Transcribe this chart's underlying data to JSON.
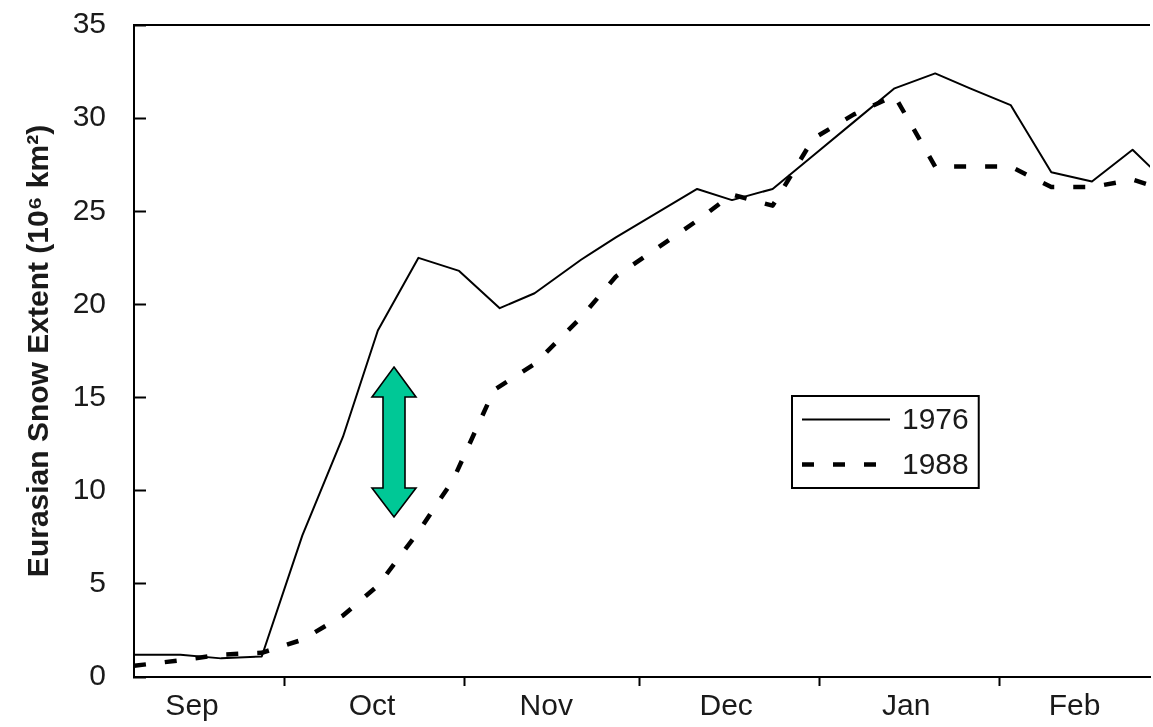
{
  "chart_data": {
    "type": "line",
    "ylabel": "Eurasian Snow Extent (10⁶ km²)",
    "xlim": [
      "1976-09-05",
      "1977-02-27"
    ],
    "xticks": [
      {
        "value": "1976-09-15",
        "label": "Sep"
      },
      {
        "value": "1976-10-01",
        "label": null
      },
      {
        "value": "1976-10-16",
        "label": "Oct"
      },
      {
        "value": "1976-11-01",
        "label": null
      },
      {
        "value": "1976-11-15",
        "label": "Nov"
      },
      {
        "value": "1976-12-01",
        "label": null
      },
      {
        "value": "1976-12-16",
        "label": "Dec"
      },
      {
        "value": "1977-01-01",
        "label": null
      },
      {
        "value": "1977-01-16",
        "label": "Jan"
      },
      {
        "value": "1977-02-01",
        "label": null
      },
      {
        "value": "1977-02-14",
        "label": "Feb"
      }
    ],
    "ylim": [
      0,
      35
    ],
    "yticks": [
      0,
      5,
      10,
      15,
      20,
      25,
      30,
      35
    ],
    "legend": "right",
    "marker": "none",
    "series": [
      {
        "name": "1976",
        "color": "#000000",
        "line_style": "solid",
        "x": [
          "1976-09-05",
          "1976-09-13",
          "1976-09-20",
          "1976-09-27",
          "1976-10-04",
          "1976-10-11",
          "1976-10-17",
          "1976-10-24",
          "1976-10-31",
          "1976-11-07",
          "1976-11-13",
          "1976-11-21",
          "1976-11-27",
          "1976-12-04",
          "1976-12-11",
          "1976-12-17",
          "1976-12-24",
          "1976-12-31",
          "1977-01-07",
          "1977-01-14",
          "1977-01-21",
          "1977-01-27",
          "1977-02-03",
          "1977-02-10",
          "1977-02-17",
          "1977-02-24",
          "1977-02-27"
        ],
        "values": [
          1.2,
          1.2,
          1.0,
          1.1,
          7.6,
          12.9,
          18.6,
          22.5,
          21.8,
          19.8,
          20.6,
          22.4,
          23.6,
          24.9,
          26.2,
          25.6,
          26.2,
          28.0,
          29.8,
          31.6,
          32.4,
          31.6,
          30.7,
          27.1,
          26.6,
          28.3,
          27.4
        ]
      },
      {
        "name": "1988",
        "color": "#000000",
        "line_style": "dashed",
        "x": [
          "1976-09-05",
          "1976-09-13",
          "1976-09-20",
          "1976-09-27",
          "1976-10-04",
          "1976-10-11",
          "1976-10-17",
          "1976-10-24",
          "1976-10-30",
          "1976-11-06",
          "1976-11-13",
          "1976-11-21",
          "1976-11-27",
          "1976-12-04",
          "1976-12-11",
          "1976-12-17",
          "1976-12-24",
          "1976-12-31",
          "1977-01-07",
          "1977-01-14",
          "1977-01-21",
          "1977-01-27",
          "1977-02-03",
          "1977-02-10",
          "1977-02-17",
          "1977-02-24",
          "1977-02-27"
        ],
        "values": [
          0.6,
          0.9,
          1.2,
          1.3,
          2.0,
          3.3,
          4.9,
          7.8,
          10.6,
          15.4,
          16.8,
          19.3,
          21.5,
          23.0,
          24.5,
          25.9,
          25.3,
          28.9,
          30.2,
          31.2,
          27.4,
          27.4,
          27.4,
          26.3,
          26.3,
          26.7,
          26.4
        ]
      }
    ]
  }
}
